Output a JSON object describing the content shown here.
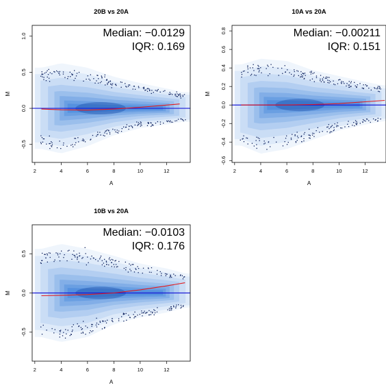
{
  "chart_data": [
    {
      "type": "scatter",
      "title": "20B vs 20A",
      "xlabel": "A",
      "ylabel": "M",
      "xlim": [
        1.8,
        13.8
      ],
      "ylim": [
        -0.75,
        1.15
      ],
      "xticks": [
        2,
        4,
        6,
        8,
        10,
        12
      ],
      "yticks": [
        -0.5,
        0.0,
        0.5,
        1.0
      ],
      "ytick_labels": [
        "-0.5",
        "0.0",
        "0.5",
        "1.0"
      ],
      "annotations": [
        "Median: −0.0129",
        "IQR: 0.169"
      ],
      "reference_line": {
        "y": 0,
        "color": "#1a1ad6"
      },
      "loess": {
        "x": [
          2.5,
          4,
          6,
          8,
          10,
          12,
          13
        ],
        "y": [
          -0.01,
          -0.02,
          -0.025,
          -0.01,
          0.015,
          0.045,
          0.06
        ],
        "color": "#e31a1c"
      },
      "density": {
        "center_x": 7,
        "center_y": 0,
        "color": "#1f6fd6"
      },
      "outlier_band": {
        "upper": [
          [
            2.5,
            0.45
          ],
          [
            4,
            0.5
          ],
          [
            6,
            0.45
          ],
          [
            8,
            0.35
          ],
          [
            10,
            0.28
          ],
          [
            12,
            0.22
          ],
          [
            13.2,
            0.18
          ]
        ],
        "lower": [
          [
            2.5,
            -0.45
          ],
          [
            4,
            -0.5
          ],
          [
            6,
            -0.42
          ],
          [
            8,
            -0.3
          ],
          [
            10,
            -0.22
          ],
          [
            12,
            -0.18
          ],
          [
            13.2,
            -0.15
          ]
        ]
      },
      "grid": false
    },
    {
      "type": "scatter",
      "title": "10A vs 20A",
      "xlabel": "A",
      "ylabel": "M",
      "xlim": [
        1.8,
        13.6
      ],
      "ylim": [
        -0.62,
        0.86
      ],
      "xticks": [
        2,
        4,
        6,
        8,
        10,
        12
      ],
      "yticks": [
        -0.6,
        -0.4,
        -0.2,
        0.0,
        0.2,
        0.4,
        0.6,
        0.8
      ],
      "ytick_labels": [
        "-0.6",
        "-0.4",
        "-0.2",
        "0.0",
        "0.2",
        "0.4",
        "0.6",
        "0.8"
      ],
      "annotations": [
        "Median: −0.00211",
        "IQR: 0.151"
      ],
      "reference_line": {
        "y": 0,
        "color": "#1a1ad6"
      },
      "loess": {
        "x": [
          2.5,
          4,
          6,
          8,
          10,
          12,
          13.5
        ],
        "y": [
          0.0,
          0.0,
          0.0,
          0.005,
          0.015,
          0.035,
          0.05
        ],
        "color": "#e31a1c"
      },
      "density": {
        "center_x": 7,
        "center_y": 0,
        "color": "#1f6fd6"
      },
      "outlier_band": {
        "upper": [
          [
            2.5,
            0.35
          ],
          [
            4,
            0.4
          ],
          [
            6,
            0.38
          ],
          [
            8,
            0.3
          ],
          [
            10,
            0.25
          ],
          [
            12,
            0.2
          ],
          [
            13.4,
            0.17
          ]
        ],
        "lower": [
          [
            2.5,
            -0.35
          ],
          [
            4,
            -0.42
          ],
          [
            6,
            -0.38
          ],
          [
            8,
            -0.3
          ],
          [
            10,
            -0.22
          ],
          [
            12,
            -0.17
          ],
          [
            13.4,
            -0.14
          ]
        ]
      },
      "grid": false
    },
    {
      "type": "scatter",
      "title": "10B vs 20A",
      "xlabel": "A",
      "ylabel": "M",
      "xlim": [
        1.8,
        13.8
      ],
      "ylim": [
        -0.87,
        0.87
      ],
      "xticks": [
        2,
        4,
        6,
        8,
        10,
        12
      ],
      "yticks": [
        -0.5,
        0.0,
        0.5
      ],
      "ytick_labels": [
        "-0.5",
        "0.0",
        "0.5"
      ],
      "annotations": [
        "Median: −0.0103",
        "IQR: 0.176"
      ],
      "reference_line": {
        "y": 0,
        "color": "#1a1ad6"
      },
      "loess": {
        "x": [
          2.5,
          4,
          6,
          8,
          10,
          12,
          13.4
        ],
        "y": [
          -0.035,
          -0.03,
          -0.02,
          0.0,
          0.04,
          0.09,
          0.13
        ],
        "color": "#e31a1c"
      },
      "density": {
        "center_x": 7,
        "center_y": 0,
        "color": "#1f6fd6"
      },
      "outlier_band": {
        "upper": [
          [
            2.5,
            0.45
          ],
          [
            4,
            0.5
          ],
          [
            6,
            0.45
          ],
          [
            8,
            0.38
          ],
          [
            10,
            0.3
          ],
          [
            12,
            0.25
          ],
          [
            13.4,
            0.2
          ]
        ],
        "lower": [
          [
            2.5,
            -0.45
          ],
          [
            4,
            -0.5
          ],
          [
            6,
            -0.45
          ],
          [
            8,
            -0.32
          ],
          [
            10,
            -0.25
          ],
          [
            12,
            -0.2
          ],
          [
            13.4,
            -0.15
          ]
        ]
      },
      "grid": false
    }
  ]
}
